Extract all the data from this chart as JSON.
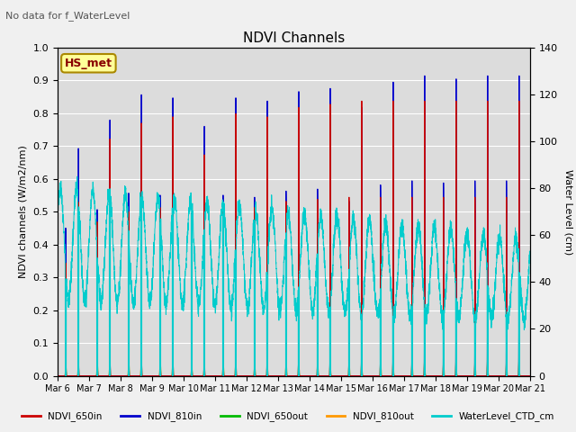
{
  "title": "NDVI Channels",
  "top_label": "No data for f_WaterLevel",
  "box_label": "HS_met",
  "ylabel_left": "NDVI channels (W/m2/nm)",
  "ylabel_right": "Water Level (cm)",
  "ylim_left": [
    0.0,
    1.0
  ],
  "ylim_right": [
    0,
    140
  ],
  "colors": {
    "NDVI_650in": "#cc0000",
    "NDVI_810in": "#0000cc",
    "NDVI_650out": "#00bb00",
    "NDVI_810out": "#ff9900",
    "WaterLevel_CTD_cm": "#00cccc"
  },
  "legend_entries": [
    "NDVI_650in",
    "NDVI_810in",
    "NDVI_650out",
    "NDVI_810out",
    "WaterLevel_CTD_cm"
  ],
  "xtick_labels": [
    "Mar 6",
    "Mar 7",
    "Mar 8",
    "Mar 9",
    "Mar 10",
    "Mar 11",
    "Mar 12",
    "Mar 13",
    "Mar 14",
    "Mar 15",
    "Mar 16",
    "Mar 17",
    "Mar 18",
    "Mar 19",
    "Mar 20",
    "Mar 21"
  ],
  "fig_facecolor": "#f0f0f0",
  "axes_facecolor": "#dcdcdc",
  "grid_color": "#ffffff"
}
